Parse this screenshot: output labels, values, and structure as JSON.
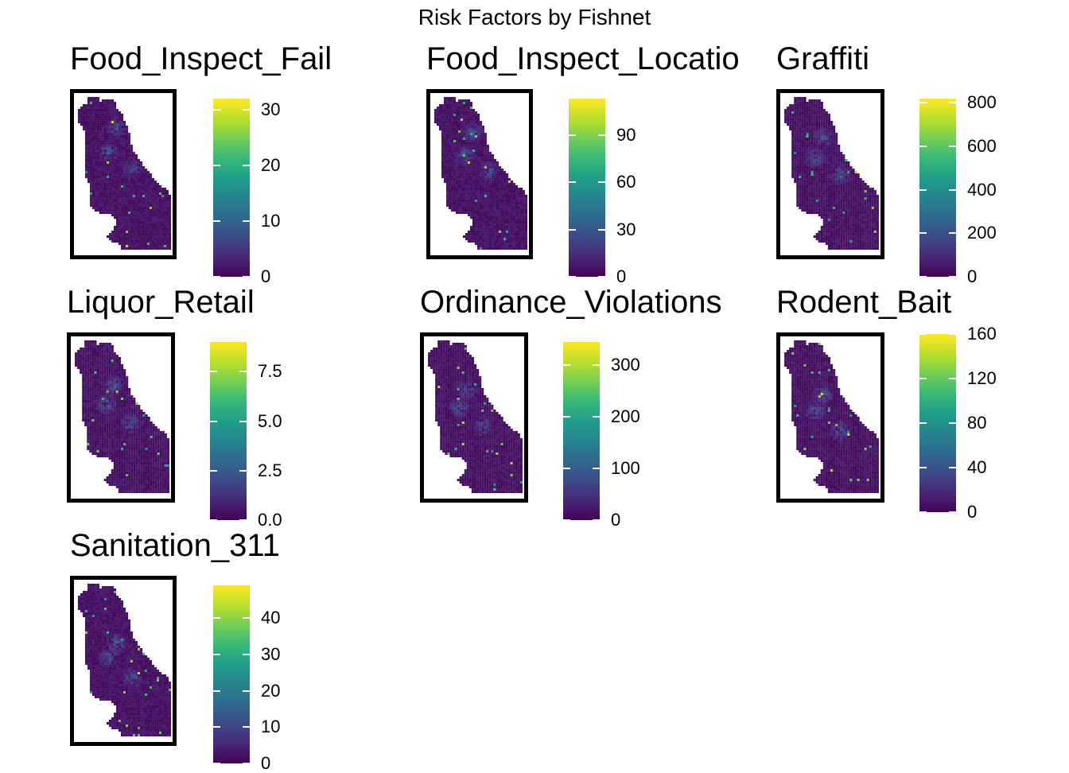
{
  "title": "Risk Factors by Fishnet",
  "colorscale": [
    "#440154",
    "#482878",
    "#3e4a89",
    "#31688e",
    "#26828e",
    "#1f9e89",
    "#35b779",
    "#6ece58",
    "#b5de2b",
    "#fde725"
  ],
  "panels": [
    {
      "name": "Food_Inspect_Fail",
      "max": 32,
      "ticks": [
        {
          "label": "0",
          "value": 0
        },
        {
          "label": "10",
          "value": 10
        },
        {
          "label": "20",
          "value": 20
        },
        {
          "label": "30",
          "value": 30
        }
      ]
    },
    {
      "name": "Food_Inspect_Locatio",
      "max": 113,
      "ticks": [
        {
          "label": "0",
          "value": 0
        },
        {
          "label": "30",
          "value": 30
        },
        {
          "label": "60",
          "value": 60
        },
        {
          "label": "90",
          "value": 90
        }
      ]
    },
    {
      "name": "Graffiti",
      "max": 820,
      "ticks": [
        {
          "label": "0",
          "value": 0
        },
        {
          "label": "200",
          "value": 200
        },
        {
          "label": "400",
          "value": 400
        },
        {
          "label": "600",
          "value": 600
        },
        {
          "label": "800",
          "value": 800
        }
      ]
    },
    {
      "name": "Liquor_Retail",
      "max": 9,
      "ticks": [
        {
          "label": "0.0",
          "value": 0
        },
        {
          "label": "2.5",
          "value": 2.5
        },
        {
          "label": "5.0",
          "value": 5
        },
        {
          "label": "7.5",
          "value": 7.5
        }
      ]
    },
    {
      "name": "Ordinance_Violations",
      "max": 345,
      "ticks": [
        {
          "label": "0",
          "value": 0
        },
        {
          "label": "100",
          "value": 100
        },
        {
          "label": "200",
          "value": 200
        },
        {
          "label": "300",
          "value": 300
        }
      ]
    },
    {
      "name": "Rodent_Bait",
      "max": 160,
      "ticks": [
        {
          "label": "0",
          "value": 0
        },
        {
          "label": "40",
          "value": 40
        },
        {
          "label": "80",
          "value": 80
        },
        {
          "label": "120",
          "value": 120
        },
        {
          "label": "160",
          "value": 160
        }
      ]
    },
    {
      "name": "Sanitation_311",
      "max": 49,
      "ticks": [
        {
          "label": "0",
          "value": 0
        },
        {
          "label": "10",
          "value": 10
        },
        {
          "label": "20",
          "value": 20
        },
        {
          "label": "30",
          "value": 30
        },
        {
          "label": "40",
          "value": 40
        }
      ]
    }
  ]
}
